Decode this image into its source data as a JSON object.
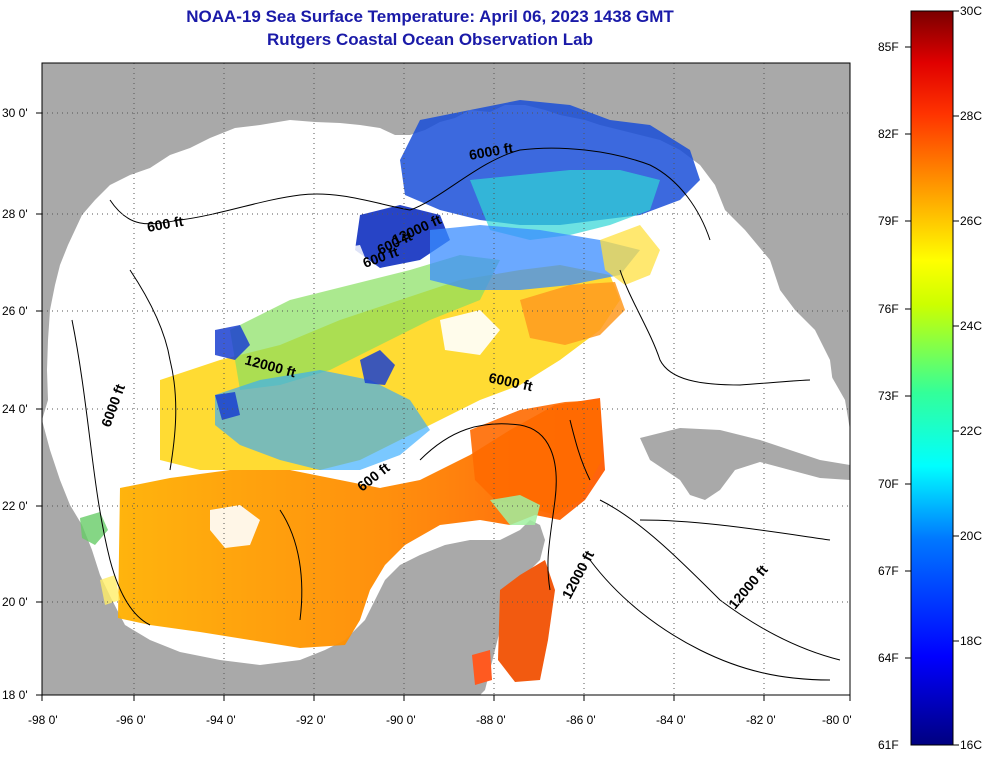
{
  "header": {
    "title_line1": "NOAA-19 Sea Surface Temperature:  April 06, 2023 1438 GMT",
    "title_line2": "Rutgers Coastal Ocean Observation Lab"
  },
  "map": {
    "lon_ticks": [
      "-98 0'",
      "-96 0'",
      "-94 0'",
      "-92 0'",
      "-90 0'",
      "-88 0'",
      "-86 0'",
      "-84 0'",
      "-82 0'",
      "-80 0'"
    ],
    "lat_ticks": [
      "30 0'",
      "28 0'",
      "26 0'",
      "24 0'",
      "22 0'",
      "20 0'",
      "18 0'"
    ],
    "contour_labels": [
      "600 ft",
      "6000 ft",
      "12000 ft",
      "600 ft",
      "6000 ft",
      "6000 ft",
      "12000 ft",
      "600 ft",
      "600 ft",
      "12000 ft",
      "12000 ft"
    ],
    "colors": {
      "land": "#a9a9a9",
      "ocean_nodata": "#ffffff"
    }
  },
  "colorbar": {
    "fahrenheit_labels": [
      "85F",
      "82F",
      "79F",
      "76F",
      "73F",
      "70F",
      "67F",
      "64F",
      "61F"
    ],
    "celsius_labels": [
      "30C",
      "28C",
      "26C",
      "24C",
      "22C",
      "20C",
      "18C",
      "16C"
    ],
    "min_c": 16,
    "max_c": 30
  }
}
